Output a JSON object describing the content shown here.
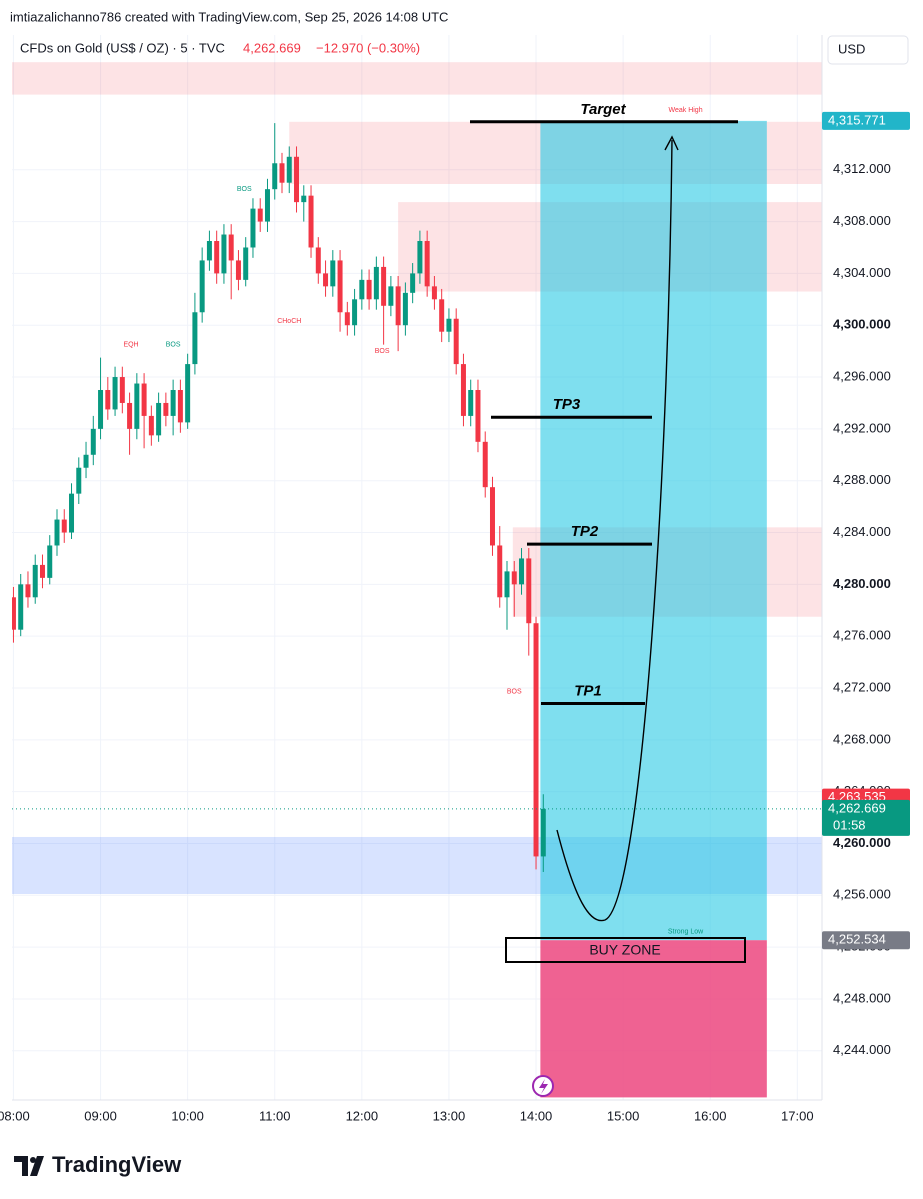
{
  "chart_data": {
    "type": "candlestick",
    "credit": "imtiazalichanno786 created with TradingView.com, Sep 25, 2026 14:08 UTC",
    "title": "CFDs on Gold (US$ / OZ) · 5 · TVC",
    "last_price_label": "4,262.669",
    "change_label": "−12.970 (−0.30%)",
    "currency": "USD",
    "logo": "TradingView",
    "up_color": "#089981",
    "down_color": "#f23645",
    "grid": true,
    "xlim": [
      "07:59",
      "17:17"
    ],
    "xticks": [
      "08:00",
      "09:00",
      "10:00",
      "11:00",
      "12:00",
      "13:00",
      "14:00",
      "15:00",
      "16:00",
      "17:00"
    ],
    "ylim": [
      4240.2,
      4322.4
    ],
    "yticks": [
      {
        "value": 4244,
        "label": "4,244.000"
      },
      {
        "value": 4248,
        "label": "4,248.000"
      },
      {
        "value": 4252,
        "label": "4,252.000"
      },
      {
        "value": 4256,
        "label": "4,256.000"
      },
      {
        "value": 4260,
        "label": "4,260.000",
        "bold": true
      },
      {
        "value": 4264,
        "label": "4,264.000"
      },
      {
        "value": 4268,
        "label": "4,268.000"
      },
      {
        "value": 4272,
        "label": "4,272.000"
      },
      {
        "value": 4276,
        "label": "4,276.000"
      },
      {
        "value": 4280,
        "label": "4,280.000",
        "bold": true
      },
      {
        "value": 4284,
        "label": "4,284.000"
      },
      {
        "value": 4288,
        "label": "4,288.000"
      },
      {
        "value": 4292,
        "label": "4,292.000"
      },
      {
        "value": 4296,
        "label": "4,296.000"
      },
      {
        "value": 4300,
        "label": "4,300.000",
        "bold": true
      },
      {
        "value": 4304,
        "label": "4,304.000"
      },
      {
        "value": 4308,
        "label": "4,308.000"
      },
      {
        "value": 4312,
        "label": "4,312.000"
      }
    ],
    "x": [
      "08:00",
      "08:05",
      "08:10",
      "08:15",
      "08:20",
      "08:25",
      "08:30",
      "08:35",
      "08:40",
      "08:45",
      "08:50",
      "08:55",
      "09:00",
      "09:05",
      "09:10",
      "09:15",
      "09:20",
      "09:25",
      "09:30",
      "09:35",
      "09:40",
      "09:45",
      "09:50",
      "09:55",
      "10:00",
      "10:05",
      "10:10",
      "10:15",
      "10:20",
      "10:25",
      "10:30",
      "10:35",
      "10:40",
      "10:45",
      "10:50",
      "10:55",
      "11:00",
      "11:05",
      "11:10",
      "11:15",
      "11:20",
      "11:25",
      "11:30",
      "11:35",
      "11:40",
      "11:45",
      "11:50",
      "11:55",
      "12:00",
      "12:05",
      "12:10",
      "12:15",
      "12:20",
      "12:25",
      "12:30",
      "12:35",
      "12:40",
      "12:45",
      "12:50",
      "12:55",
      "13:00",
      "13:05",
      "13:10",
      "13:15",
      "13:20",
      "13:25",
      "13:30",
      "13:35",
      "13:40",
      "13:45",
      "13:50",
      "13:55",
      "14:00",
      "14:05"
    ],
    "open": [
      4279,
      4276.5,
      4280,
      4279,
      4281.5,
      4280.5,
      4283,
      4285,
      4284,
      4287,
      4289,
      4290,
      4292,
      4295,
      4293.5,
      4296,
      4294,
      4292,
      4295.5,
      4293,
      4291.5,
      4294,
      4293,
      4295,
      4292.5,
      4297,
      4301,
      4305,
      4306.5,
      4304,
      4307,
      4305,
      4303.5,
      4306,
      4309,
      4308,
      4310.5,
      4312.5,
      4311,
      4313,
      4309.5,
      4310,
      4306,
      4304,
      4303,
      4305,
      4301,
      4300,
      4302,
      4303.5,
      4302,
      4304.5,
      4301.5,
      4303,
      4300,
      4302.5,
      4304,
      4306.5,
      4303,
      4302,
      4299.5,
      4300.5,
      4297,
      4293,
      4295,
      4291,
      4287.5,
      4283,
      4279,
      4281,
      4280,
      4282,
      4277,
      4259
    ],
    "high": [
      4279.8,
      4280.8,
      4281,
      4282.3,
      4282.3,
      4283.8,
      4285.8,
      4285.8,
      4287.8,
      4289.8,
      4291,
      4293,
      4297.5,
      4296,
      4296.8,
      4296.8,
      4294.8,
      4296.3,
      4296.3,
      4293.8,
      4294.8,
      4294.8,
      4295.8,
      4295.8,
      4297.8,
      4302.5,
      4306,
      4307.3,
      4307.3,
      4307.8,
      4307.8,
      4305.8,
      4306.8,
      4309.8,
      4309.8,
      4311.3,
      4315.6,
      4313.3,
      4313.8,
      4313.8,
      4310.8,
      4310.8,
      4306.8,
      4305,
      4305.8,
      4305.8,
      4301.8,
      4302.8,
      4304.3,
      4304.3,
      4305.3,
      4305.3,
      4303.8,
      4303.8,
      4303.3,
      4304.8,
      4307.3,
      4307.3,
      4303.8,
      4302.8,
      4301.3,
      4301.3,
      4297.8,
      4295.8,
      4295.8,
      4291.8,
      4288.3,
      4284.5,
      4281.8,
      4281.8,
      4282.8,
      4282.8,
      4277.5,
      4263.8
    ],
    "low": [
      4275.5,
      4276,
      4278.2,
      4278.5,
      4279.7,
      4280,
      4282.2,
      4283.2,
      4283.5,
      4286.2,
      4288.2,
      4289.2,
      4291.2,
      4292.7,
      4293,
      4293.2,
      4290,
      4291.2,
      4290.5,
      4290.7,
      4291,
      4292.2,
      4291.5,
      4291.7,
      4292,
      4296.2,
      4300.2,
      4304.2,
      4303.2,
      4303.2,
      4302,
      4302.7,
      4303,
      4305.2,
      4307.2,
      4307.2,
      4309.7,
      4310.2,
      4310.2,
      4308.7,
      4308,
      4305.2,
      4303.2,
      4302.2,
      4302.2,
      4299.5,
      4299.2,
      4299.2,
      4301.2,
      4301.2,
      4301.2,
      4298.5,
      4300.7,
      4298,
      4299.2,
      4301.7,
      4303.2,
      4302.2,
      4301.2,
      4298.7,
      4298.7,
      4296.2,
      4292.2,
      4292.2,
      4290.2,
      4286.7,
      4282.2,
      4278.2,
      4276.5,
      4277.5,
      4279.2,
      4274.5,
      4258,
      4257.8
    ],
    "close": [
      4276.5,
      4280,
      4279,
      4281.5,
      4280.5,
      4283,
      4285,
      4284,
      4287,
      4289,
      4290,
      4292,
      4295,
      4293.5,
      4296,
      4294,
      4292,
      4295.5,
      4293,
      4291.5,
      4294,
      4293,
      4295,
      4292.5,
      4297,
      4301,
      4305,
      4306.5,
      4304,
      4307,
      4305,
      4303.5,
      4306,
      4309,
      4308,
      4310.5,
      4312.5,
      4311,
      4313,
      4309.5,
      4310,
      4306,
      4304,
      4303,
      4305,
      4301,
      4300,
      4302,
      4303.5,
      4302,
      4304.5,
      4301.5,
      4303,
      4300,
      4302.5,
      4304,
      4306.5,
      4303,
      4302,
      4299.5,
      4300.5,
      4297,
      4293,
      4295,
      4291,
      4287.5,
      4283,
      4279,
      4281,
      4280,
      4282,
      4277,
      4259,
      4262.669
    ],
    "zones": [
      {
        "start": "07:59",
        "end": "17:17",
        "low": 4317.8,
        "high": 4320.3,
        "color": "rgba(242,54,69,0.14)"
      },
      {
        "start": "11:10",
        "end": "17:17",
        "low": 4310.9,
        "high": 4315.7,
        "color": "rgba(242,54,69,0.14)"
      },
      {
        "start": "12:25",
        "end": "17:17",
        "low": 4302.6,
        "high": 4309.5,
        "color": "rgba(242,54,69,0.14)"
      },
      {
        "start": "13:44",
        "end": "17:17",
        "low": 4277.5,
        "high": 4284.4,
        "color": "rgba(242,54,69,0.14)"
      },
      {
        "start": "07:59",
        "end": "17:17",
        "low": 4256.1,
        "high": 4260.5,
        "color": "rgba(41,98,255,0.18)"
      }
    ],
    "position": {
      "start": "14:03",
      "end": "16:39",
      "target": 4315.771,
      "entry": 4252.534,
      "stop": 4240.4,
      "profit_color": "rgba(34,200,228,0.58)",
      "loss_color": "rgba(236,64,122,0.82)"
    },
    "markers": [
      {
        "text": "BOS",
        "x": "10:39",
        "y": 4310.5,
        "color": "#089981"
      },
      {
        "text": "EQH",
        "x": "09:21",
        "y": 4298.5,
        "color": "#f23645"
      },
      {
        "text": "BOS",
        "x": "09:50",
        "y": 4298.5,
        "color": "#089981"
      },
      {
        "text": "CHoCH",
        "x": "11:10",
        "y": 4300.3,
        "color": "#f23645"
      },
      {
        "text": "BOS",
        "x": "12:14",
        "y": 4298,
        "color": "#f23645"
      },
      {
        "text": "BOS",
        "x": "13:45",
        "y": 4271.7,
        "color": "#f23645"
      },
      {
        "text": "Weak High",
        "x": "15:43",
        "y": 4316.6,
        "color": "#f23645"
      },
      {
        "text": "Strong Low",
        "x": "15:43",
        "y": 4253.2,
        "color": "#089981"
      }
    ],
    "annotations": [
      {
        "text": "Target",
        "y": 4315.7
      },
      {
        "text": "TP3",
        "y": 4292.9
      },
      {
        "text": "TP2",
        "y": 4283.1
      },
      {
        "text": "TP1",
        "y": 4270.8
      }
    ],
    "zone_label": "BUY ZONE",
    "price_tags": [
      {
        "value": 4315.771,
        "label": "4,315.771",
        "color": "#22b5c9"
      },
      {
        "value": 4263.535,
        "label": "4,263.535",
        "color": "#f23645"
      },
      {
        "value": 4262.669,
        "label": "4,262.669",
        "color": "#089981",
        "sub": "01:58"
      },
      {
        "value": 4252.534,
        "label": "4,252.534",
        "color": "#787b86"
      }
    ]
  }
}
